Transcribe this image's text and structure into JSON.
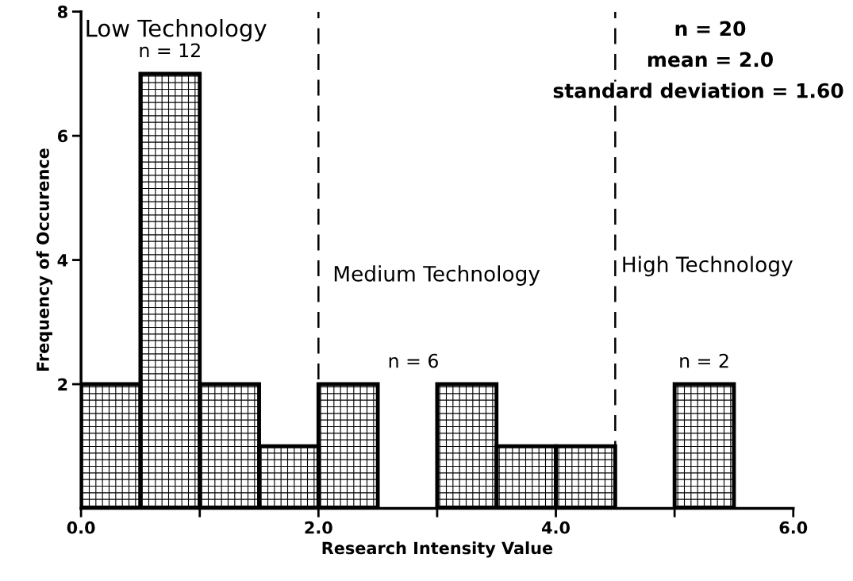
{
  "chart_data": {
    "type": "histogram",
    "xlabel": "Research Intensity Value",
    "ylabel": "Frequency of Occurence",
    "bins": [
      0,
      0.5,
      1,
      1.5,
      2,
      2.5,
      3,
      3.5,
      4,
      4.5,
      5,
      5.5,
      6
    ],
    "values": [
      2,
      7,
      2,
      1,
      2,
      0,
      2,
      1,
      1,
      0,
      2,
      0
    ],
    "color": "#000000",
    "xlim": [
      0,
      6
    ],
    "ylim": [
      0,
      8
    ],
    "xticks": [
      {
        "value": 0,
        "label": "0.0"
      },
      {
        "value": 1,
        "label": null
      },
      {
        "value": 2,
        "label": "2.0"
      },
      {
        "value": 3,
        "label": null
      },
      {
        "value": 4,
        "label": "4.0"
      },
      {
        "value": 5,
        "label": null
      },
      {
        "value": 6,
        "label": "6.0"
      }
    ],
    "yticks": [
      2,
      4,
      6,
      8
    ],
    "ref_lines": [
      {
        "axis": "x",
        "value": 2,
        "color": "#000000",
        "line_style": "dashed"
      },
      {
        "axis": "x",
        "value": 4.5,
        "color": "#000000",
        "line_style": "dashed"
      }
    ],
    "annotations": [
      "Low Technology",
      "n = 12",
      "Medium Technology",
      "n = 6",
      "High Technology",
      "n = 2",
      "n = 20",
      "mean = 2.0",
      "standard deviation = 1.60"
    ],
    "grid": false,
    "legend": false
  }
}
